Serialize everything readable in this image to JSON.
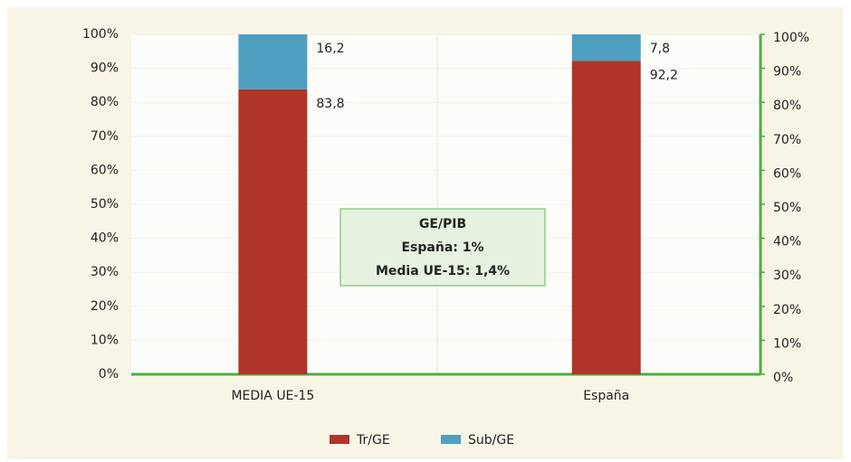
{
  "chart_data": {
    "type": "stacked_bar",
    "categories": [
      "MEDIA UE-15",
      "España"
    ],
    "series": [
      {
        "name": "Tr/GE",
        "color": "#b03427",
        "values": [
          83.8,
          92.2
        ],
        "value_labels": [
          "83,8",
          "92,2"
        ]
      },
      {
        "name": "Sub/GE",
        "color": "#4f9fc0",
        "values": [
          16.2,
          7.8
        ],
        "value_labels": [
          "16,2",
          "7,8"
        ]
      }
    ],
    "ylim": [
      0,
      100
    ],
    "yticks": [
      {
        "value": 0,
        "label": "0%"
      },
      {
        "value": 10,
        "label": "10%"
      },
      {
        "value": 20,
        "label": "20%"
      },
      {
        "value": 30,
        "label": "30%"
      },
      {
        "value": 40,
        "label": "40%"
      },
      {
        "value": 50,
        "label": "50%"
      },
      {
        "value": 60,
        "label": "60%"
      },
      {
        "value": 70,
        "label": "70%"
      },
      {
        "value": 80,
        "label": "80%"
      },
      {
        "value": 90,
        "label": "90%"
      },
      {
        "value": 100,
        "label": "100%"
      }
    ],
    "y2lim": [
      0,
      100
    ],
    "y2ticks": [
      {
        "value": 0,
        "label": "0%"
      },
      {
        "value": 10,
        "label": "10%"
      },
      {
        "value": 20,
        "label": "20%"
      },
      {
        "value": 30,
        "label": "30%"
      },
      {
        "value": 40,
        "label": "40%"
      },
      {
        "value": 50,
        "label": "50%"
      },
      {
        "value": 60,
        "label": "60%"
      },
      {
        "value": 70,
        "label": "70%"
      },
      {
        "value": 80,
        "label": "80%"
      },
      {
        "value": 90,
        "label": "90%"
      },
      {
        "value": 100,
        "label": "100%"
      }
    ],
    "annotations": [
      "GE/PIB",
      "España: 1%",
      "Media UE-15: 1,4%"
    ],
    "legend": "bottom"
  }
}
